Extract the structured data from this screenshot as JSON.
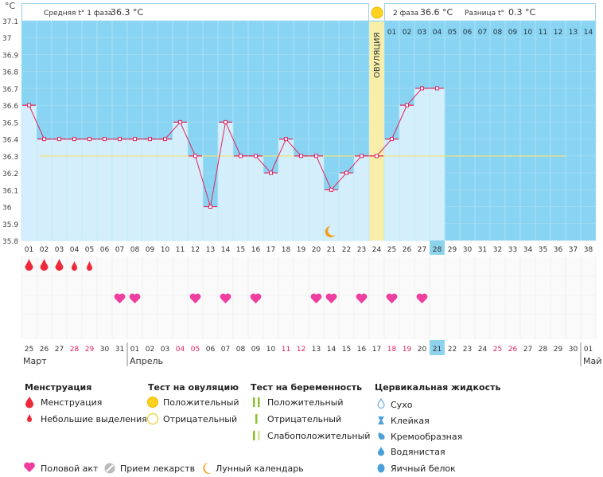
{
  "header": {
    "unit": "°C",
    "phase1_label": "Средняя t° 1 фаза",
    "phase1_value": "36.3 °C",
    "phase2_label": "2 фаза",
    "phase2_value": "36.6 °C",
    "diff_label": "Разница t°",
    "diff_value": "0.3 °C",
    "ovulation_label": "ОВУЛЯЦИЯ"
  },
  "chart_data": {
    "type": "line",
    "ylim": [
      35.8,
      37.1
    ],
    "yticks": [
      "37.1",
      "37",
      "36.9",
      "36.8",
      "36.7",
      "36.6",
      "36.5",
      "36.4",
      "36.3",
      "36.2",
      "36.1",
      "36",
      "35.9",
      "35.8"
    ],
    "cycle_days": [
      "01",
      "02",
      "03",
      "04",
      "05",
      "06",
      "07",
      "08",
      "09",
      "10",
      "11",
      "12",
      "13",
      "14",
      "15",
      "16",
      "17",
      "18",
      "19",
      "20",
      "21",
      "22",
      "23",
      "24",
      "25",
      "26",
      "27",
      "28",
      "29",
      "30",
      "31",
      "32",
      "33",
      "34",
      "35",
      "36",
      "37",
      "38"
    ],
    "phase2_days": [
      "01",
      "02",
      "03",
      "04",
      "05",
      "06",
      "07",
      "08",
      "09",
      "10",
      "11",
      "12",
      "13",
      "14"
    ],
    "temperatures": [
      36.6,
      36.4,
      36.4,
      36.4,
      36.4,
      36.4,
      36.4,
      36.4,
      36.4,
      36.4,
      36.5,
      36.3,
      36.0,
      36.5,
      36.3,
      36.3,
      36.2,
      36.4,
      36.3,
      36.3,
      36.1,
      36.2,
      36.3,
      36.3,
      36.4,
      36.6,
      36.7,
      36.7
    ],
    "coverline": 36.3,
    "ovulation_day": 24,
    "today_day": 28,
    "moon_day": 21,
    "dates": [
      "25",
      "26",
      "27",
      "28",
      "29",
      "30",
      "31",
      "01",
      "02",
      "03",
      "04",
      "05",
      "06",
      "07",
      "08",
      "09",
      "10",
      "11",
      "12",
      "13",
      "14",
      "15",
      "16",
      "17",
      "18",
      "19",
      "20",
      "21",
      "22",
      "23",
      "24",
      "25",
      "26",
      "27",
      "28",
      "29",
      "30",
      "01"
    ],
    "red_dates": [
      3,
      4,
      10,
      11,
      17,
      18,
      24,
      25,
      31,
      32
    ],
    "months": [
      {
        "name": "Март",
        "day": 1
      },
      {
        "name": "Апрель",
        "day": 8
      },
      {
        "name": "Май",
        "day": 38
      }
    ],
    "menstruation": [
      {
        "day": 1,
        "type": "big"
      },
      {
        "day": 2,
        "type": "big"
      },
      {
        "day": 3,
        "type": "big"
      },
      {
        "day": 4,
        "type": "small"
      },
      {
        "day": 5,
        "type": "small"
      }
    ],
    "intercourse_days": [
      7,
      8,
      12,
      14,
      16,
      20,
      21,
      23,
      25,
      27
    ]
  },
  "legend": {
    "menstruation": {
      "title": "Менструация",
      "items": [
        "Менструация",
        "Небольшие выделения"
      ]
    },
    "ovulation_test": {
      "title": "Тест на овуляцию",
      "items": [
        "Положительный",
        "Отрицательный"
      ]
    },
    "pregnancy_test": {
      "title": "Тест на беременность",
      "items": [
        "Положительный",
        "Отрицательный",
        "Слабоположительный"
      ]
    },
    "cervical": {
      "title": "Цервикальная жидкость",
      "items": [
        "Сухо",
        "Клейкая",
        "Кремообразная",
        "Водянистая",
        "Яичный белок"
      ]
    },
    "bottom": [
      "Половой акт",
      "Прием лекарств",
      "Лунный календарь"
    ]
  },
  "colors": {
    "sky": "#89d4f2",
    "bar": "#d4effb",
    "line": "#e0245e",
    "ovulation": "#f8eeaa",
    "today": "#8ed3ee",
    "red_text": "#e0245e"
  }
}
